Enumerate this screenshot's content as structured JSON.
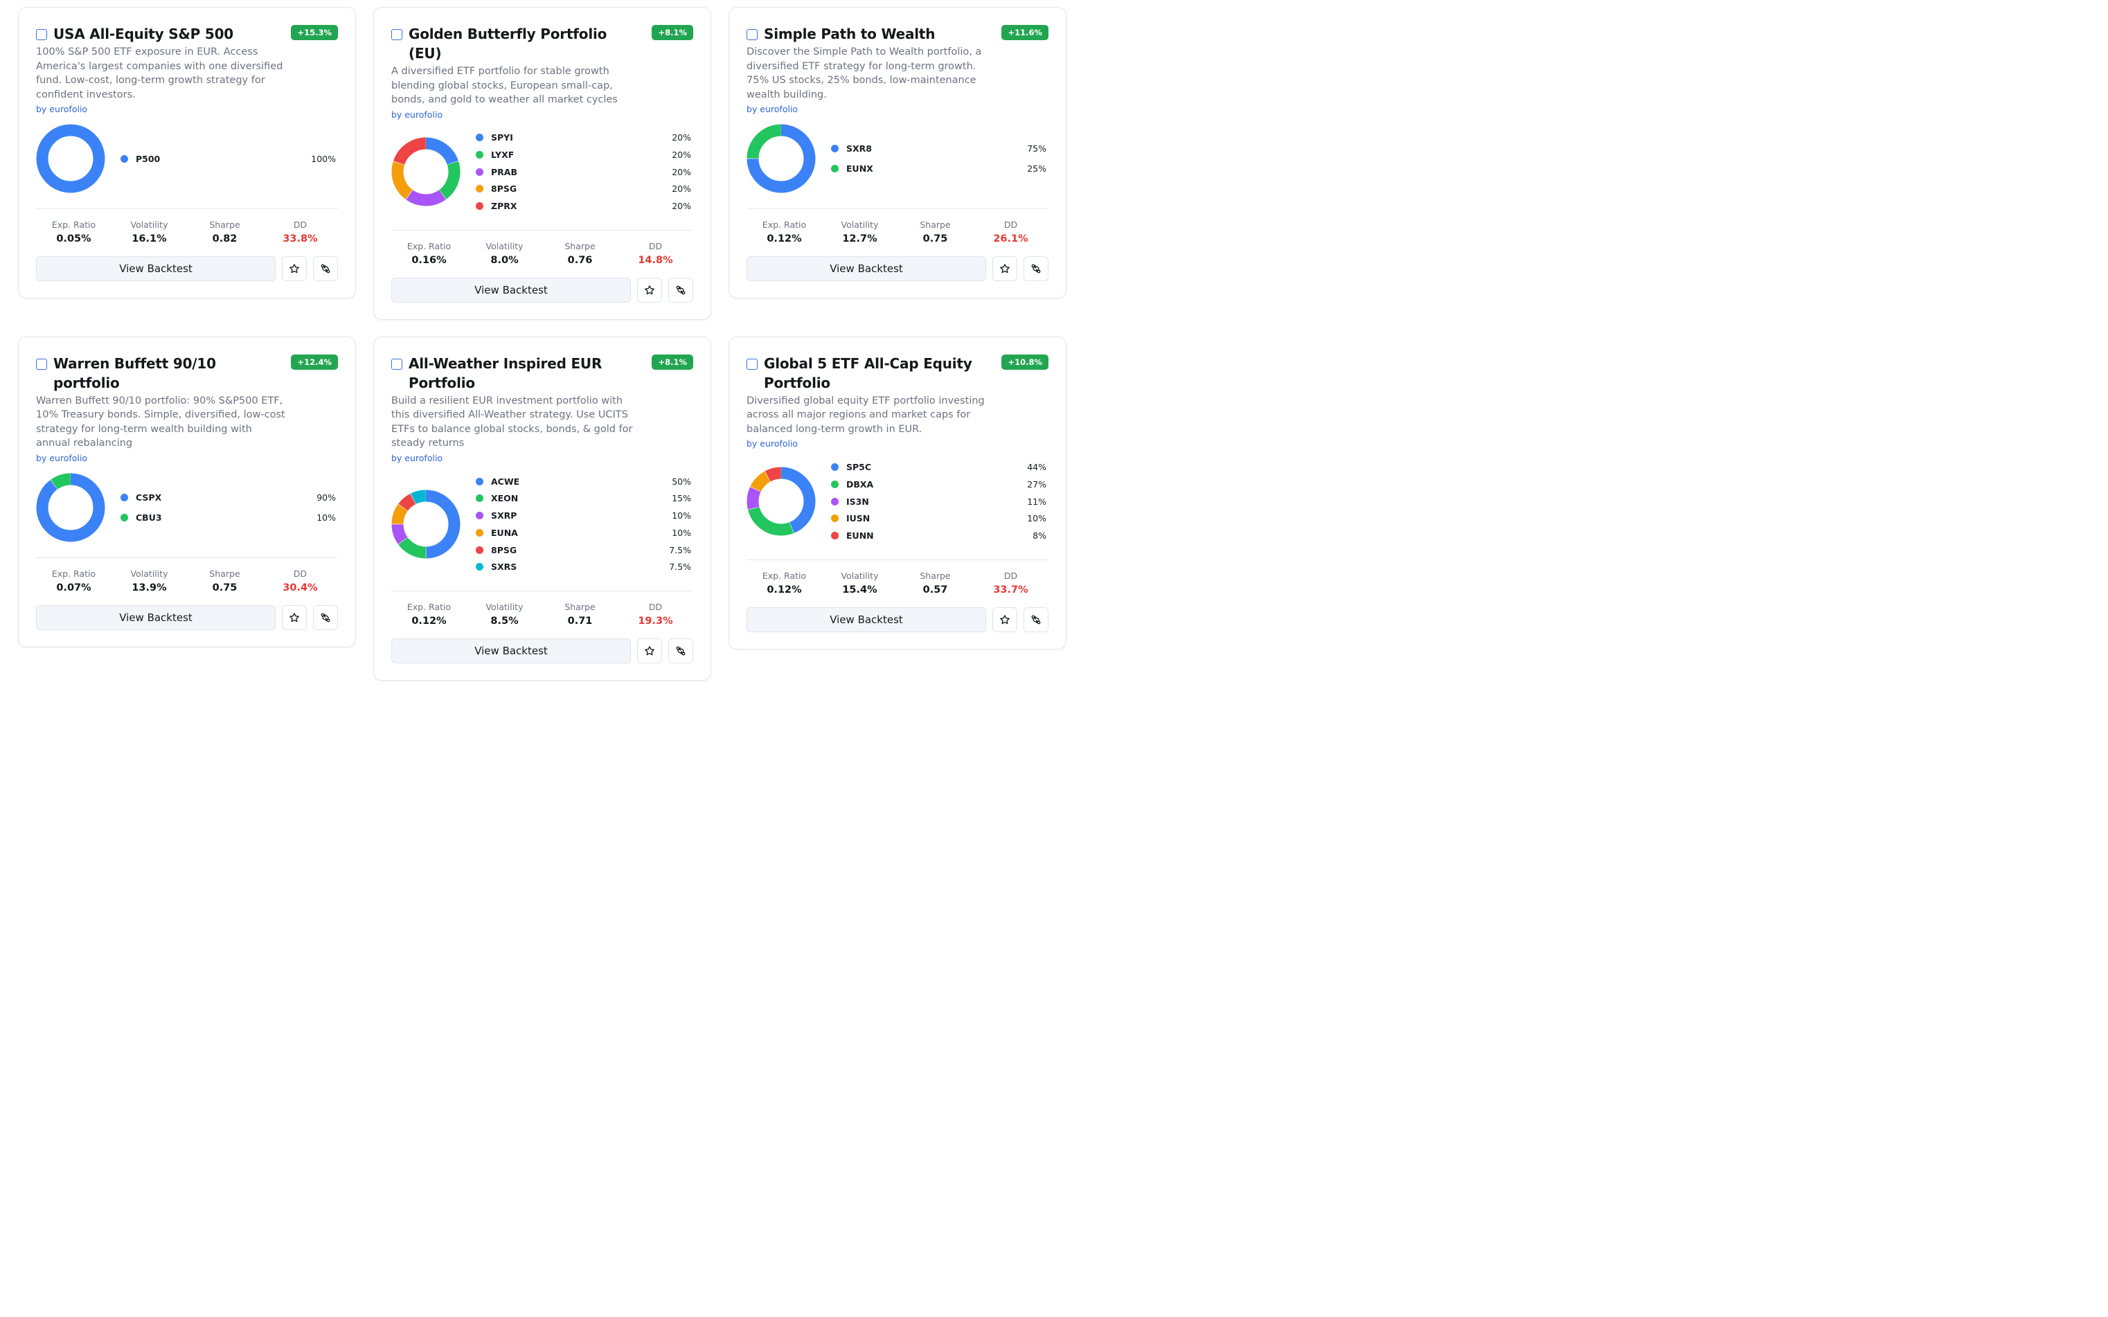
{
  "colors": {
    "blue": "#3b82f6",
    "green": "#22c55e",
    "purple": "#a855f7",
    "orange": "#f59e0b",
    "red": "#ef4444",
    "cyan": "#06b6d4",
    "badge": "#22a551",
    "dd": "#e53935"
  },
  "labels": {
    "exp_ratio": "Exp. Ratio",
    "volatility": "Volatility",
    "sharpe": "Sharpe",
    "dd": "DD",
    "view_backtest": "View Backtest"
  },
  "portfolios": [
    {
      "title": "USA All-Equity S&P 500",
      "badge": "+15.3%",
      "description": "100% S&P 500 ETF exposure in EUR. Access America's largest companies with one diversified fund. Low-cost, long-term growth strategy for confident investors.",
      "author": "by eurofolio",
      "holdings": [
        {
          "ticker": "P500",
          "percent": "100%",
          "weight": 100,
          "color": "blue"
        }
      ],
      "stats": {
        "exp_ratio": "0.05%",
        "volatility": "16.1%",
        "sharpe": "0.82",
        "dd": "33.8%"
      }
    },
    {
      "title": "Golden Butterfly Portfolio (EU)",
      "badge": "+8.1%",
      "description": "A diversified ETF portfolio for stable growth blending global stocks, European small-cap, bonds, and gold to weather all market cycles",
      "author": "by eurofolio",
      "holdings": [
        {
          "ticker": "SPYI",
          "percent": "20%",
          "weight": 20,
          "color": "blue"
        },
        {
          "ticker": "LYXF",
          "percent": "20%",
          "weight": 20,
          "color": "green"
        },
        {
          "ticker": "PRAB",
          "percent": "20%",
          "weight": 20,
          "color": "purple"
        },
        {
          "ticker": "8PSG",
          "percent": "20%",
          "weight": 20,
          "color": "orange"
        },
        {
          "ticker": "ZPRX",
          "percent": "20%",
          "weight": 20,
          "color": "red"
        }
      ],
      "stats": {
        "exp_ratio": "0.16%",
        "volatility": "8.0%",
        "sharpe": "0.76",
        "dd": "14.8%"
      }
    },
    {
      "title": "Simple Path to Wealth",
      "badge": "+11.6%",
      "description": "Discover the Simple Path to Wealth portfolio, a diversified ETF strategy for long-term growth. 75% US stocks, 25% bonds, low-maintenance wealth building.",
      "author": "by eurofolio",
      "holdings": [
        {
          "ticker": "SXR8",
          "percent": "75%",
          "weight": 75,
          "color": "blue"
        },
        {
          "ticker": "EUNX",
          "percent": "25%",
          "weight": 25,
          "color": "green"
        }
      ],
      "stats": {
        "exp_ratio": "0.12%",
        "volatility": "12.7%",
        "sharpe": "0.75",
        "dd": "26.1%"
      }
    },
    {
      "title": "Warren Buffett 90/10 portfolio",
      "badge": "+12.4%",
      "description": "Warren Buffett 90/10 portfolio: 90% S&P500 ETF, 10% Treasury bonds. Simple, diversified, low-cost strategy for long-term wealth building with annual rebalancing",
      "author": "by eurofolio",
      "holdings": [
        {
          "ticker": "CSPX",
          "percent": "90%",
          "weight": 90,
          "color": "blue"
        },
        {
          "ticker": "CBU3",
          "percent": "10%",
          "weight": 10,
          "color": "green"
        }
      ],
      "stats": {
        "exp_ratio": "0.07%",
        "volatility": "13.9%",
        "sharpe": "0.75",
        "dd": "30.4%"
      }
    },
    {
      "title": "All-Weather Inspired EUR Portfolio",
      "badge": "+8.1%",
      "description": "Build a resilient EUR investment portfolio with this diversified All-Weather strategy. Use UCITS ETFs to balance global stocks, bonds, & gold for steady returns",
      "author": "by eurofolio",
      "holdings": [
        {
          "ticker": "ACWE",
          "percent": "50%",
          "weight": 50,
          "color": "blue"
        },
        {
          "ticker": "XEON",
          "percent": "15%",
          "weight": 15,
          "color": "green"
        },
        {
          "ticker": "SXRP",
          "percent": "10%",
          "weight": 10,
          "color": "purple"
        },
        {
          "ticker": "EUNA",
          "percent": "10%",
          "weight": 10,
          "color": "orange"
        },
        {
          "ticker": "8PSG",
          "percent": "7.5%",
          "weight": 7.5,
          "color": "red"
        },
        {
          "ticker": "SXRS",
          "percent": "7.5%",
          "weight": 7.5,
          "color": "cyan"
        }
      ],
      "stats": {
        "exp_ratio": "0.12%",
        "volatility": "8.5%",
        "sharpe": "0.71",
        "dd": "19.3%"
      }
    },
    {
      "title": "Global 5 ETF All-Cap Equity Portfolio",
      "badge": "+10.8%",
      "description": "Diversified global equity ETF portfolio investing across all major regions and market caps for balanced long-term growth in EUR.",
      "author": "by eurofolio",
      "holdings": [
        {
          "ticker": "SP5C",
          "percent": "44%",
          "weight": 44,
          "color": "blue"
        },
        {
          "ticker": "DBXA",
          "percent": "27%",
          "weight": 27,
          "color": "green"
        },
        {
          "ticker": "IS3N",
          "percent": "11%",
          "weight": 11,
          "color": "purple"
        },
        {
          "ticker": "IUSN",
          "percent": "10%",
          "weight": 10,
          "color": "orange"
        },
        {
          "ticker": "EUNN",
          "percent": "8%",
          "weight": 8,
          "color": "red"
        }
      ],
      "stats": {
        "exp_ratio": "0.12%",
        "volatility": "15.4%",
        "sharpe": "0.57",
        "dd": "33.7%"
      }
    }
  ]
}
